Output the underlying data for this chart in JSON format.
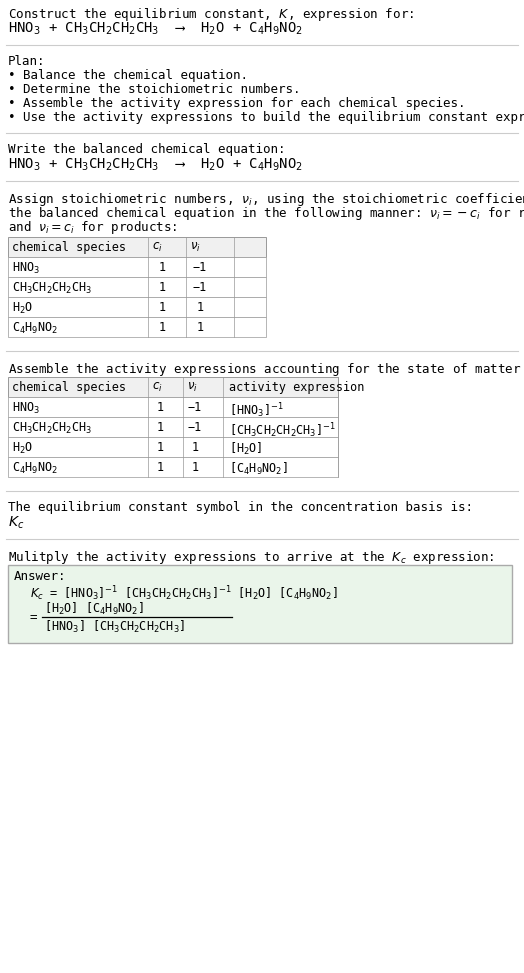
{
  "title_line1": "Construct the equilibrium constant, $K$, expression for:",
  "reaction_eq": "HNO$_3$ + CH$_3$CH$_2$CH$_2$CH$_3$  ⟶  H$_2$O + C$_4$H$_9$NO$_2$",
  "plan_header": "Plan:",
  "plan_items": [
    "• Balance the chemical equation.",
    "• Determine the stoichiometric numbers.",
    "• Assemble the activity expression for each chemical species.",
    "• Use the activity expressions to build the equilibrium constant expression."
  ],
  "balanced_header": "Write the balanced chemical equation:",
  "balanced_eq": "HNO$_3$ + CH$_3$CH$_2$CH$_2$CH$_3$  ⟶  H$_2$O + C$_4$H$_9$NO$_2$",
  "stoich_intro": "Assign stoichiometric numbers, $\\nu_i$, using the stoichiometric coefficients, $c_i$, from\nthe balanced chemical equation in the following manner: $\\nu_i = -c_i$ for reactants\nand $\\nu_i = c_i$ for products:",
  "table1_headers": [
    "chemical species",
    "$c_i$",
    "$\\nu_i$"
  ],
  "table1_rows": [
    [
      "HNO$_3$",
      "1",
      "−1"
    ],
    [
      "CH$_3$CH$_2$CH$_2$CH$_3$",
      "1",
      "−1"
    ],
    [
      "H$_2$O",
      "1",
      "1"
    ],
    [
      "C$_4$H$_9$NO$_2$",
      "1",
      "1"
    ]
  ],
  "activity_intro": "Assemble the activity expressions accounting for the state of matter and $\\nu_i$:",
  "table2_headers": [
    "chemical species",
    "$c_i$",
    "$\\nu_i$",
    "activity expression"
  ],
  "table2_rows": [
    [
      "HNO$_3$",
      "1",
      "−1",
      "[HNO$_3$]$^{-1}$"
    ],
    [
      "CH$_3$CH$_2$CH$_2$CH$_3$",
      "1",
      "−1",
      "[CH$_3$CH$_2$CH$_2$CH$_3$]$^{-1}$"
    ],
    [
      "H$_2$O",
      "1",
      "1",
      "[H$_2$O]"
    ],
    [
      "C$_4$H$_9$NO$_2$",
      "1",
      "1",
      "[C$_4$H$_9$NO$_2$]"
    ]
  ],
  "kc_intro": "The equilibrium constant symbol in the concentration basis is:",
  "kc_symbol": "$K_c$",
  "multiply_intro": "Mulitply the activity expressions to arrive at the $K_c$ expression:",
  "answer_label": "Answer:",
  "ans_kc_line": "$K_c$ = [HNO$_3$]$^{-1}$ [CH$_3$CH$_2$CH$_2$CH$_3$]$^{-1}$ [H$_2$O] [C$_4$H$_9$NO$_2$]",
  "ans_eq_sign": "=",
  "ans_numerator": "[H$_2$O] [C$_4$H$_9$NO$_2$]",
  "ans_denominator": "[HNO$_3$] [CH$_3$CH$_2$CH$_2$CH$_3$]",
  "bg_color": "#ffffff",
  "sep_color": "#cccccc",
  "table_header_bg": "#f0f0f0",
  "table_row_bg": "#ffffff",
  "answer_bg": "#eaf5ea",
  "answer_border": "#aaaaaa"
}
